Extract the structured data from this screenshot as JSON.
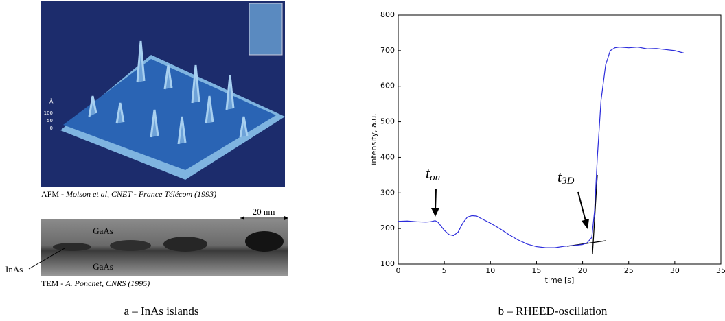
{
  "figure": {
    "afm_scale_unit": "Å",
    "afm_scale_ticks": [
      "100",
      "50",
      "0"
    ],
    "afm_caption_prefix": "AFM - ",
    "afm_caption_source": "Moison et al, CNET - France Télécom (1993)",
    "tem_scale": "20 nm",
    "tem_top_label": "GaAs",
    "tem_bottom_label": "GaAs",
    "tem_layer_label": "InAs",
    "tem_caption_prefix": "TEM - ",
    "tem_caption_source": "A. Ponchet, CNRS (1995)",
    "caption_a": "a – InAs islands",
    "caption_b": "b – RHEED-oscillation"
  },
  "chart_data": {
    "type": "line",
    "xlabel": "time [s]",
    "ylabel": "intensity, a.u.",
    "x": [
      0,
      1,
      2,
      3,
      3.5,
      4,
      4.3,
      5,
      5.5,
      6,
      6.5,
      7,
      7.5,
      8,
      8.5,
      9,
      10,
      11,
      12,
      13,
      14,
      15,
      16,
      17,
      18,
      19,
      20,
      20.5,
      21,
      21.3,
      21.6,
      22,
      22.5,
      23,
      23.5,
      24,
      25,
      26,
      27,
      28,
      29,
      30,
      31
    ],
    "series": [
      {
        "name": "intensity",
        "color": "#2b2bdb",
        "values": [
          220,
          221,
          219,
          218,
          219,
          222,
          218,
          195,
          183,
          180,
          190,
          215,
          232,
          236,
          235,
          228,
          215,
          200,
          183,
          168,
          156,
          149,
          146,
          146,
          150,
          152,
          155,
          160,
          175,
          250,
          400,
          560,
          660,
          700,
          708,
          710,
          708,
          710,
          705,
          706,
          703,
          700,
          693
        ]
      }
    ],
    "annotations": [
      {
        "text": "t",
        "sub": "on"
      },
      {
        "text": "t",
        "sub": "3D"
      }
    ],
    "xlim": [
      0,
      35
    ],
    "ylim": [
      100,
      800
    ],
    "xticks": [
      0,
      5,
      10,
      15,
      20,
      25,
      30,
      35
    ],
    "yticks": [
      100,
      200,
      300,
      400,
      500,
      600,
      700,
      800
    ]
  }
}
